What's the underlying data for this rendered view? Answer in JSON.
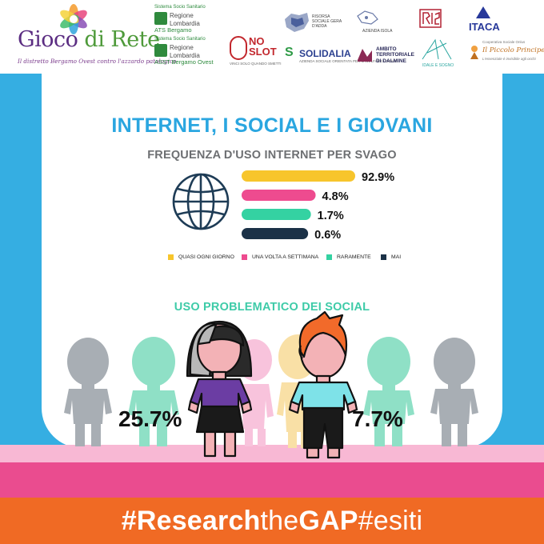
{
  "header": {
    "project_title_part1": "Gioco",
    "project_title_part2": " di Rete",
    "project_tagline": "Il distretto Bergamo Ovest contro l'azzardo patologico",
    "partners": [
      {
        "line1": "Sistema Socio Sanitario",
        "name": "Regione Lombardia",
        "sub": "ATS Bergamo"
      },
      {
        "line1": "Sistema Socio Sanitario",
        "name": "Regione Lombardia",
        "sub": "ASST Bergamo Ovest"
      }
    ],
    "noslot_prefix": "NO",
    "noslot_name": "SLOT",
    "noslot_sub": "VINCI SOLO QUANDO SMETTI",
    "rete_sociale": "RISORSA SOCIALE GERA D'ADDA",
    "azienda_isola": "AZIENDA ISOLA",
    "solidalia": "SOLIDALIA",
    "solidalia_sub": "AZIENDA SOCIALE ORIENTATA PER IL WELFARE LOCALE",
    "ambito_lines": [
      "AMBITO",
      "TERRITORIALE",
      "DI DALMINE"
    ],
    "sogno": "IDALE E SOGNO",
    "itaca": "ITACA",
    "piccolo_sub": "Cooperativa Sociale Onlus",
    "piccolo": "Il Piccolo Principe",
    "piccolo_sub2": "L'essenziale è invisibile agli occhi"
  },
  "title": "INTERNET, I SOCIAL E I GIOVANI",
  "subtitle": "FREQUENZA D'USO INTERNET PER SVAGO",
  "chart_data": [
    {
      "type": "bar",
      "orientation": "horizontal",
      "title": "FREQUENZA D'USO INTERNET PER SVAGO",
      "categories": [
        "QUASI OGNI GIORNO",
        "UNA VOLTA A SETTIMANA",
        "RARAMENTE",
        "MAI"
      ],
      "values": [
        92.9,
        4.8,
        1.7,
        0.6
      ],
      "value_labels": [
        "92.9%",
        "4.8%",
        "1.7%",
        "0.6%"
      ],
      "colors": [
        "#f7c52c",
        "#ee4b8f",
        "#34d2a2",
        "#1b3147"
      ],
      "legend": "bottom"
    },
    {
      "type": "pictograph",
      "title": "USO PROBLEMATICO DEI SOCIAL",
      "categories": [
        "female",
        "male"
      ],
      "values": [
        25.7,
        7.7
      ],
      "value_labels": [
        "25.7%",
        "7.7%"
      ]
    }
  ],
  "social_title": "USO PROBLEMATICO DEI SOCIAL",
  "hashtag": {
    "part1": "#Research",
    "part2": "the",
    "part3": "GAP",
    "part4": "#esiti"
  },
  "colors": {
    "accent_blue": "#2aa6e0",
    "accent_teal": "#3ecba8",
    "pink": "#ea4c8f",
    "orange": "#f06a24"
  }
}
